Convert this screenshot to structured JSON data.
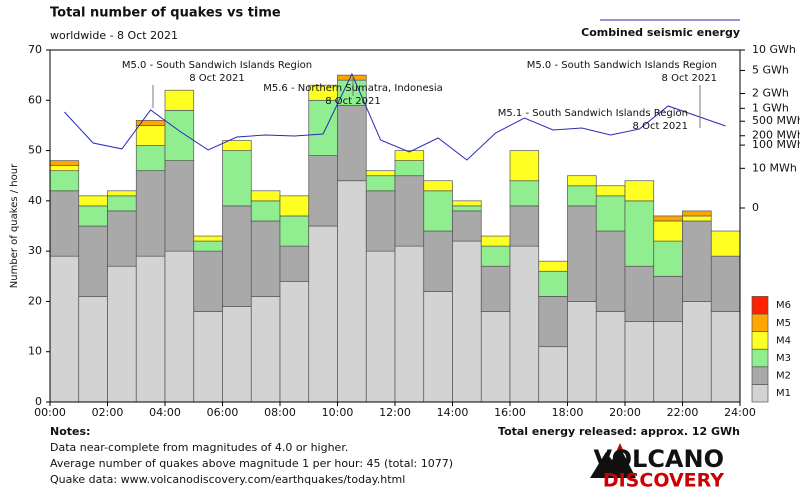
{
  "chart_data": {
    "type": "bar",
    "stacked": true,
    "title": "Total number of quakes vs time",
    "subtitle": "worldwide -  8 Oct 2021",
    "y_label": "Number of quakes / hour",
    "x": [
      0,
      1,
      2,
      3,
      4,
      5,
      6,
      7,
      8,
      9,
      10,
      11,
      12,
      13,
      14,
      15,
      16,
      17,
      18,
      19,
      20,
      21,
      22,
      23
    ],
    "bar_width": 1,
    "xlim": [
      0,
      24
    ],
    "xticks": [
      {
        "value": 0,
        "label": "00:00"
      },
      {
        "value": 2,
        "label": "02:00"
      },
      {
        "value": 4,
        "label": "04:00"
      },
      {
        "value": 6,
        "label": "06:00"
      },
      {
        "value": 8,
        "label": "08:00"
      },
      {
        "value": 10,
        "label": "10:00"
      },
      {
        "value": 12,
        "label": "12:00"
      },
      {
        "value": 14,
        "label": "14:00"
      },
      {
        "value": 16,
        "label": "16:00"
      },
      {
        "value": 18,
        "label": "18:00"
      },
      {
        "value": 20,
        "label": "20:00"
      },
      {
        "value": 22,
        "label": "22:00"
      },
      {
        "value": 24,
        "label": "24:00"
      }
    ],
    "ylim": [
      0,
      70
    ],
    "yticks": [
      0,
      10,
      20,
      30,
      40,
      50,
      60,
      70
    ],
    "y2lim": [
      0,
      10000
    ],
    "y2scale": "power",
    "y2power": 0.2,
    "y2ticks": [
      {
        "value": 10000,
        "label": "10 GWh"
      },
      {
        "value": 5000,
        "label": "5 GWh"
      },
      {
        "value": 2000,
        "label": "2 GWh"
      },
      {
        "value": 1000,
        "label": "1 GWh"
      },
      {
        "value": 500,
        "label": "500 MWh"
      },
      {
        "value": 200,
        "label": "200 MWh"
      },
      {
        "value": 100,
        "label": "100 MWh"
      },
      {
        "value": 10,
        "label": "10 MWh"
      },
      0
    ],
    "series": [
      {
        "name": "M1",
        "color": "#d3d3d3",
        "values": [
          29,
          21,
          27,
          29,
          30,
          18,
          19,
          21,
          24,
          35,
          44,
          30,
          31,
          22,
          32,
          18,
          31,
          11,
          20,
          18,
          16,
          16,
          20,
          18
        ]
      },
      {
        "name": "M2",
        "color": "#a9a9a9",
        "values": [
          13,
          14,
          11,
          17,
          18,
          12,
          20,
          15,
          7,
          14,
          15,
          12,
          14,
          12,
          6,
          9,
          8,
          10,
          19,
          16,
          11,
          9,
          16,
          11
        ]
      },
      {
        "name": "M3",
        "color": "#90ee90",
        "values": [
          4,
          4,
          3,
          5,
          10,
          2,
          11,
          4,
          6,
          11,
          5,
          3,
          3,
          8,
          1,
          4,
          5,
          5,
          4,
          7,
          13,
          7,
          0,
          0
        ]
      },
      {
        "name": "M4",
        "color": "#ffff22",
        "values": [
          1,
          2,
          1,
          4,
          4,
          1,
          2,
          2,
          4,
          3,
          0,
          1,
          2,
          2,
          1,
          2,
          6,
          2,
          2,
          2,
          4,
          4,
          1,
          5
        ]
      },
      {
        "name": "M5",
        "color": "#ffa500",
        "values": [
          1,
          0,
          0,
          1,
          0,
          0,
          0,
          0,
          0,
          0,
          1,
          0,
          0,
          0,
          0,
          0,
          0,
          0,
          0,
          0,
          0,
          1,
          1,
          0
        ]
      },
      {
        "name": "M6",
        "color": "#ff2200",
        "values": [
          0,
          0,
          0,
          0,
          0,
          0,
          0,
          0,
          0,
          0,
          0,
          0,
          0,
          0,
          0,
          0,
          0,
          0,
          0,
          0,
          0,
          0,
          0,
          0
        ]
      }
    ],
    "energy": {
      "name": "Combined seismic energy",
      "color": "#2a2ab8",
      "type": "line",
      "axis": "y2",
      "values": [
        830,
        118,
        73,
        918,
        275,
        67,
        183,
        210,
        196,
        225,
        4400,
        148,
        56,
        171,
        26,
        241,
        600,
        293,
        333,
        210,
        313,
        1121,
        669,
        377
      ]
    },
    "annotations": [
      {
        "text": "M5.0 - South Sandwich Islands Region",
        "date": "8 Oct 2021"
      },
      {
        "text": "M5.6 - Northern Sumatra, Indonesia",
        "date": "8 Oct 2021"
      },
      {
        "text": "M5.0 - South Sandwich Islands Region",
        "date": "8 Oct 2021"
      },
      {
        "text": "M5.1 - South Sandwich Islands Region",
        "date": "8 Oct 2021"
      }
    ],
    "notes_title": "Notes:",
    "notes": [
      "Data near-complete from magnitudes of 4.0 or higher.",
      "Average number of quakes above magnitude 1 per hour: 45 (total: 1077)",
      "Quake data: www.volcanodiscovery.com/earthquakes/today.html"
    ],
    "total_energy": "Total energy released: approx. 12 GWh",
    "logo": [
      "VOLCANO",
      "DISCOVERY"
    ]
  }
}
